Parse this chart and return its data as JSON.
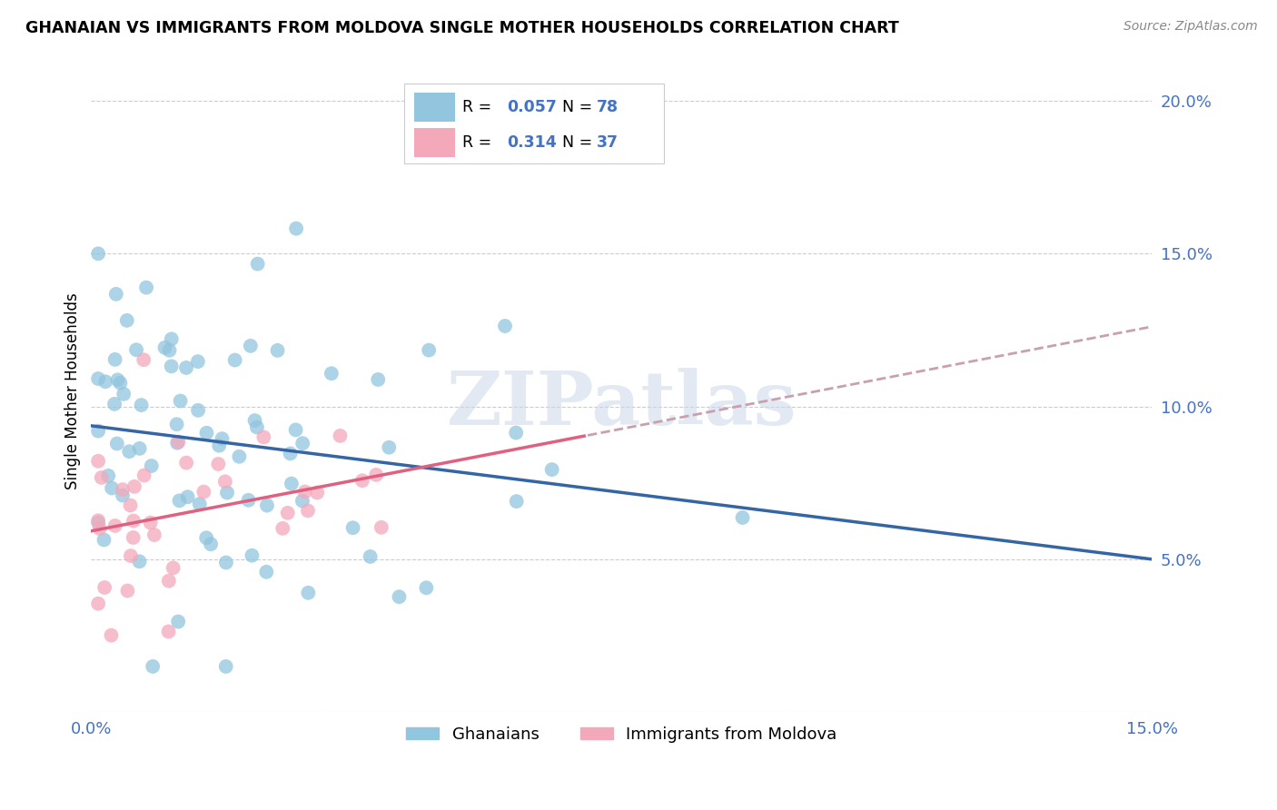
{
  "title": "GHANAIAN VS IMMIGRANTS FROM MOLDOVA SINGLE MOTHER HOUSEHOLDS CORRELATION CHART",
  "source": "Source: ZipAtlas.com",
  "ylabel": "Single Mother Households",
  "xlim": [
    0.0,
    0.15
  ],
  "ylim": [
    0.0,
    0.21
  ],
  "yticks_right": [
    0.05,
    0.1,
    0.15,
    0.2
  ],
  "ytick_labels_right": [
    "5.0%",
    "10.0%",
    "15.0%",
    "20.0%"
  ],
  "legend_label1": "Ghanaians",
  "legend_label2": "Immigrants from Moldova",
  "R1": "0.057",
  "N1": "78",
  "R2": "0.314",
  "N2": "37",
  "color_blue": "#92c5de",
  "color_pink": "#f4a9bb",
  "line_blue": "#3465a4",
  "line_pink": "#e06080",
  "line_pink_dashed_color": "#c8a0b0",
  "watermark": "ZIPatlas",
  "seed": 12345
}
